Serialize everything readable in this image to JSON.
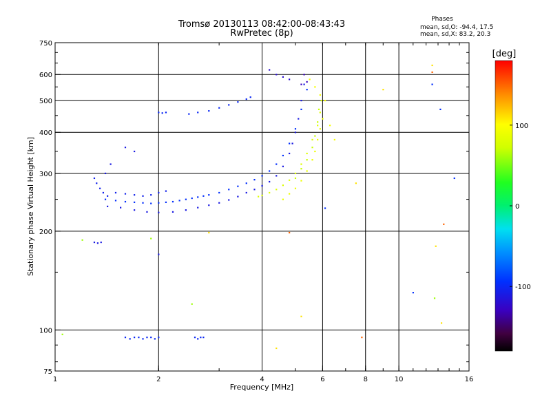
{
  "title": {
    "line1": "Tromsø 20130113 08:42:00-08:43:43",
    "line2": "RwPretec (8p)"
  },
  "stats": {
    "header": "Phases",
    "line_o": "mean, sd,O: -94.4, 17.5",
    "line_x": "mean, sd,X:  83.2, 20.3"
  },
  "colorbar": {
    "label": "[deg]",
    "ticks": [
      {
        "value": 100,
        "label": "100"
      },
      {
        "value": 0,
        "label": "0"
      },
      {
        "value": -100,
        "label": "-100"
      }
    ],
    "range": [
      -180,
      180
    ]
  },
  "chart_data": {
    "type": "scatter",
    "xlabel": "Frequency [MHz]",
    "ylabel": "Stationary phase Virtual Height [km]",
    "xscale": "log",
    "yscale": "log",
    "xlim": [
      1,
      16
    ],
    "ylim": [
      75,
      750
    ],
    "x_ticks": [
      {
        "value": 1,
        "label": "1"
      },
      {
        "value": 2,
        "label": "2"
      },
      {
        "value": 4,
        "label": "4"
      },
      {
        "value": 6,
        "label": "6"
      },
      {
        "value": 8,
        "label": "8"
      },
      {
        "value": 10,
        "label": "10"
      },
      {
        "value": 16,
        "label": "16"
      }
    ],
    "x_major_grid": [
      2,
      4,
      6,
      8,
      10
    ],
    "y_ticks": [
      {
        "value": 75,
        "label": "75"
      },
      {
        "value": 100,
        "label": "100"
      },
      {
        "value": 200,
        "label": "200"
      },
      {
        "value": 300,
        "label": "300"
      },
      {
        "value": 400,
        "label": "400"
      },
      {
        "value": 500,
        "label": "500"
      },
      {
        "value": 600,
        "label": "600"
      },
      {
        "value": 750,
        "label": "750"
      }
    ],
    "y_major_grid": [
      100,
      200,
      300,
      400,
      500,
      600
    ],
    "grid": true,
    "series": [
      {
        "name": "O",
        "color_by": "phase",
        "traces": [
          {
            "phase": -110,
            "points": [
              [
                1.42,
                238
              ],
              [
                1.55,
                236
              ],
              [
                1.7,
                232
              ],
              [
                1.85,
                229
              ],
              [
                2.0,
                228
              ],
              [
                2.2,
                229
              ],
              [
                2.4,
                232
              ],
              [
                2.6,
                236
              ],
              [
                2.8,
                240
              ],
              [
                3.0,
                244
              ],
              [
                3.2,
                249
              ],
              [
                3.4,
                255
              ],
              [
                3.6,
                262
              ],
              [
                3.8,
                268
              ],
              [
                4.0,
                275
              ],
              [
                4.2,
                283
              ],
              [
                4.4,
                295
              ],
              [
                4.6,
                315
              ],
              [
                4.8,
                345
              ],
              [
                4.9,
                370
              ],
              [
                5.0,
                400
              ],
              [
                5.1,
                440
              ],
              [
                5.2,
                500
              ],
              [
                5.3,
                560
              ]
            ]
          },
          {
            "phase": -95,
            "points": [
              [
                1.4,
                250
              ],
              [
                1.5,
                248
              ],
              [
                1.6,
                246
              ],
              [
                1.7,
                245
              ],
              [
                1.8,
                244
              ],
              [
                1.9,
                243
              ],
              [
                2.0,
                244
              ],
              [
                2.1,
                245
              ],
              [
                2.2,
                246
              ],
              [
                2.3,
                248
              ],
              [
                2.4,
                250
              ],
              [
                2.5,
                252
              ],
              [
                2.6,
                254
              ],
              [
                2.7,
                256
              ],
              [
                2.8,
                258
              ],
              [
                3.0,
                262
              ],
              [
                3.2,
                268
              ],
              [
                3.4,
                274
              ],
              [
                3.6,
                280
              ],
              [
                3.8,
                287
              ],
              [
                4.0,
                295
              ],
              [
                4.2,
                305
              ],
              [
                4.4,
                320
              ],
              [
                4.6,
                340
              ],
              [
                4.8,
                370
              ],
              [
                5.0,
                410
              ],
              [
                5.2,
                470
              ],
              [
                5.4,
                540
              ]
            ]
          },
          {
            "phase": -105,
            "points": [
              [
                1.3,
                290
              ],
              [
                1.32,
                280
              ],
              [
                1.35,
                270
              ],
              [
                1.38,
                262
              ],
              [
                1.42,
                256
              ],
              [
                1.5,
                262
              ],
              [
                1.6,
                260
              ],
              [
                1.7,
                258
              ],
              [
                1.8,
                256
              ],
              [
                1.9,
                258
              ],
              [
                2.0,
                262
              ],
              [
                2.1,
                265
              ]
            ]
          },
          {
            "phase": -100,
            "points": [
              [
                2.0,
                460
              ],
              [
                2.05,
                458
              ],
              [
                2.1,
                460
              ],
              [
                2.45,
                455
              ],
              [
                2.6,
                460
              ],
              [
                2.8,
                465
              ],
              [
                3.0,
                475
              ],
              [
                3.2,
                485
              ],
              [
                3.4,
                495
              ],
              [
                3.6,
                505
              ],
              [
                3.7,
                512
              ]
            ]
          },
          {
            "phase": -120,
            "points": [
              [
                4.2,
                620
              ],
              [
                4.4,
                600
              ],
              [
                4.6,
                590
              ],
              [
                4.8,
                580
              ]
            ]
          },
          {
            "phase": -100,
            "points": [
              [
                1.6,
                95
              ],
              [
                1.65,
                94
              ],
              [
                1.7,
                95
              ],
              [
                1.75,
                95
              ],
              [
                1.8,
                94
              ],
              [
                1.85,
                95
              ],
              [
                1.9,
                95
              ],
              [
                1.95,
                94
              ],
              [
                2.0,
                95
              ],
              [
                2.55,
                95
              ],
              [
                2.6,
                94
              ],
              [
                2.65,
                95
              ],
              [
                2.7,
                95
              ]
            ]
          },
          {
            "phase": -110,
            "points": [
              [
                1.3,
                185
              ],
              [
                1.33,
                184
              ],
              [
                1.36,
                185
              ],
              [
                2.0,
                170
              ],
              [
                1.4,
                300
              ],
              [
                1.45,
                320
              ],
              [
                1.6,
                360
              ],
              [
                1.7,
                350
              ]
            ]
          },
          {
            "phase": -95,
            "points": [
              [
                6.1,
                235
              ],
              [
                12.5,
                560
              ],
              [
                11.0,
                130
              ],
              [
                13.2,
                470
              ],
              [
                14.5,
                290
              ]
            ]
          },
          {
            "phase": -130,
            "points": [
              [
                5.3,
                600
              ],
              [
                5.4,
                570
              ],
              [
                5.2,
                560
              ]
            ]
          }
        ]
      },
      {
        "name": "X",
        "color_by": "phase",
        "traces": [
          {
            "phase": 80,
            "points": [
              [
                3.9,
                255
              ],
              [
                4.0,
                257
              ],
              [
                4.2,
                262
              ],
              [
                4.4,
                268
              ],
              [
                4.6,
                276
              ],
              [
                4.8,
                286
              ],
              [
                5.0,
                300
              ],
              [
                5.2,
                320
              ],
              [
                5.4,
                345
              ],
              [
                5.6,
                380
              ],
              [
                5.8,
                420
              ],
              [
                5.9,
                460
              ],
              [
                5.95,
                500
              ]
            ]
          },
          {
            "phase": 90,
            "points": [
              [
                4.6,
                250
              ],
              [
                4.8,
                260
              ],
              [
                5.0,
                270
              ],
              [
                5.2,
                285
              ],
              [
                5.4,
                305
              ],
              [
                5.6,
                330
              ],
              [
                5.7,
                350
              ],
              [
                5.8,
                380
              ],
              [
                5.9,
                410
              ],
              [
                6.0,
                440
              ]
            ]
          },
          {
            "phase": 70,
            "points": [
              [
                5.0,
                290
              ],
              [
                5.2,
                310
              ],
              [
                5.4,
                330
              ],
              [
                5.6,
                360
              ],
              [
                5.7,
                390
              ],
              [
                5.8,
                430
              ],
              [
                5.85,
                470
              ]
            ]
          },
          {
            "phase": 95,
            "points": [
              [
                5.5,
                580
              ],
              [
                5.7,
                550
              ],
              [
                5.9,
                520
              ],
              [
                6.1,
                500
              ],
              [
                6.3,
                420
              ],
              [
                6.5,
                380
              ]
            ]
          },
          {
            "phase": 110,
            "points": [
              [
                9.0,
                540
              ],
              [
                12.5,
                640
              ],
              [
                12.8,
                180
              ],
              [
                13.3,
                105
              ],
              [
                5.2,
                110
              ],
              [
                4.4,
                88
              ],
              [
                2.8,
                198
              ],
              [
                7.5,
                280
              ]
            ]
          },
          {
            "phase": 150,
            "points": [
              [
                12.5,
                610
              ],
              [
                13.5,
                210
              ],
              [
                4.8,
                198
              ],
              [
                7.8,
                95
              ]
            ]
          },
          {
            "phase": 60,
            "points": [
              [
                2.5,
                120
              ],
              [
                1.9,
                190
              ],
              [
                1.2,
                188
              ],
              [
                1.05,
                97
              ],
              [
                12.7,
                125
              ]
            ]
          }
        ]
      }
    ]
  }
}
